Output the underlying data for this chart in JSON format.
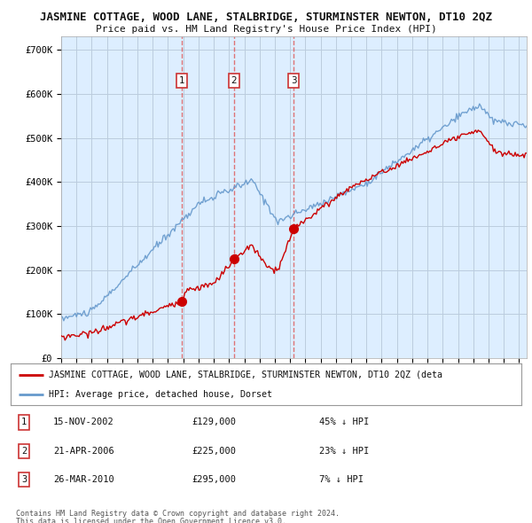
{
  "title": "JASMINE COTTAGE, WOOD LANE, STALBRIDGE, STURMINSTER NEWTON, DT10 2QZ",
  "subtitle": "Price paid vs. HM Land Registry's House Price Index (HPI)",
  "yticks": [
    0,
    100000,
    200000,
    300000,
    400000,
    500000,
    600000,
    700000
  ],
  "ytick_labels": [
    "£0",
    "£100K",
    "£200K",
    "£300K",
    "£400K",
    "£500K",
    "£600K",
    "£700K"
  ],
  "xmin": 1995.0,
  "xmax": 2025.5,
  "ymin": 0,
  "ymax": 730000,
  "sale_dates": [
    2002.88,
    2006.31,
    2010.23
  ],
  "sale_prices": [
    129000,
    225000,
    295000
  ],
  "sale_labels": [
    "1",
    "2",
    "3"
  ],
  "vline_color": "#dd6666",
  "sale_color": "#cc0000",
  "hpi_color": "#6699cc",
  "chart_bg": "#ddeeff",
  "legend_sale_label": "JASMINE COTTAGE, WOOD LANE, STALBRIDGE, STURMINSTER NEWTON, DT10 2QZ (deta",
  "legend_hpi_label": "HPI: Average price, detached house, Dorset",
  "table_entries": [
    {
      "num": "1",
      "date": "15-NOV-2002",
      "price": "£129,000",
      "change": "45% ↓ HPI"
    },
    {
      "num": "2",
      "date": "21-APR-2006",
      "price": "£225,000",
      "change": "23% ↓ HPI"
    },
    {
      "num": "3",
      "date": "26-MAR-2010",
      "price": "£295,000",
      "change": "7% ↓ HPI"
    }
  ],
  "footer1": "Contains HM Land Registry data © Crown copyright and database right 2024.",
  "footer2": "This data is licensed under the Open Government Licence v3.0.",
  "background_color": "#ffffff",
  "grid_color": "#bbccdd",
  "xtick_years": [
    1995,
    1996,
    1997,
    1998,
    1999,
    2000,
    2001,
    2002,
    2003,
    2004,
    2005,
    2006,
    2007,
    2008,
    2009,
    2010,
    2011,
    2012,
    2013,
    2014,
    2015,
    2016,
    2017,
    2018,
    2019,
    2020,
    2021,
    2022,
    2023,
    2024,
    2025
  ]
}
